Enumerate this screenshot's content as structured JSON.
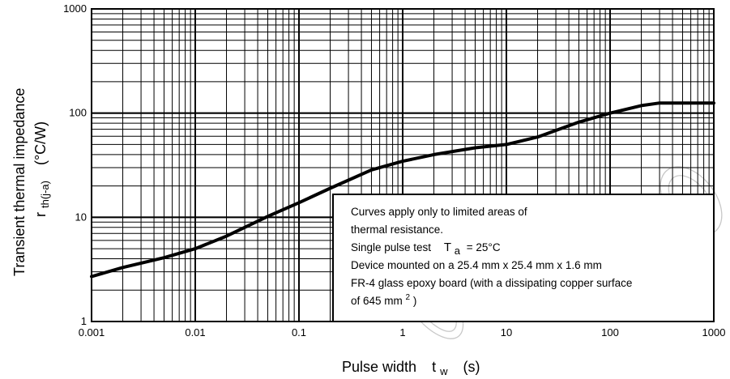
{
  "chart_data": {
    "type": "line",
    "x_scale": "log",
    "y_scale": "log",
    "xlim": [
      0.001,
      1000
    ],
    "ylim": [
      1,
      1000
    ],
    "x_ticks": [
      "0.001",
      "0.01",
      "0.1",
      "1",
      "10",
      "100",
      "1000"
    ],
    "y_ticks": [
      "1",
      "10",
      "100",
      "1000"
    ],
    "grid": true,
    "xlabel": {
      "main": "Pulse width",
      "symbol": "t",
      "symbol_sub": "w",
      "unit": "(s)"
    },
    "ylabel": {
      "line1": "Transient thermal impedance",
      "symbol": "r",
      "symbol_sub": "th(j-a)",
      "unit": "(°C/W)"
    },
    "series": [
      {
        "x": [
          0.001,
          0.002,
          0.005,
          0.01,
          0.02,
          0.05,
          0.1,
          0.2,
          0.5,
          1,
          2,
          5,
          10,
          20,
          50,
          100,
          200,
          300,
          1000
        ],
        "y": [
          2.7,
          3.3,
          4.1,
          5.0,
          6.6,
          10.2,
          13.8,
          19.0,
          28.5,
          34.5,
          40.0,
          46.5,
          50.0,
          59.0,
          82.0,
          100,
          118,
          125,
          125
        ]
      }
    ],
    "annotation": {
      "line1": "Curves apply only to limited areas of",
      "line2": "thermal resistance.",
      "line3_prefix": "Single pulse test",
      "line3_symbol": "T",
      "line3_sub": "a",
      "line3_value": "= 25°C",
      "line4": "Device mounted on a 25.4 mm x 25.4 mm x 1.6 mm",
      "line5": "FR-4 glass epoxy board (with a dissipating copper surface",
      "line6_prefix": "of 645 mm",
      "line6_sup": "2",
      "line6_suffix": ")"
    }
  }
}
